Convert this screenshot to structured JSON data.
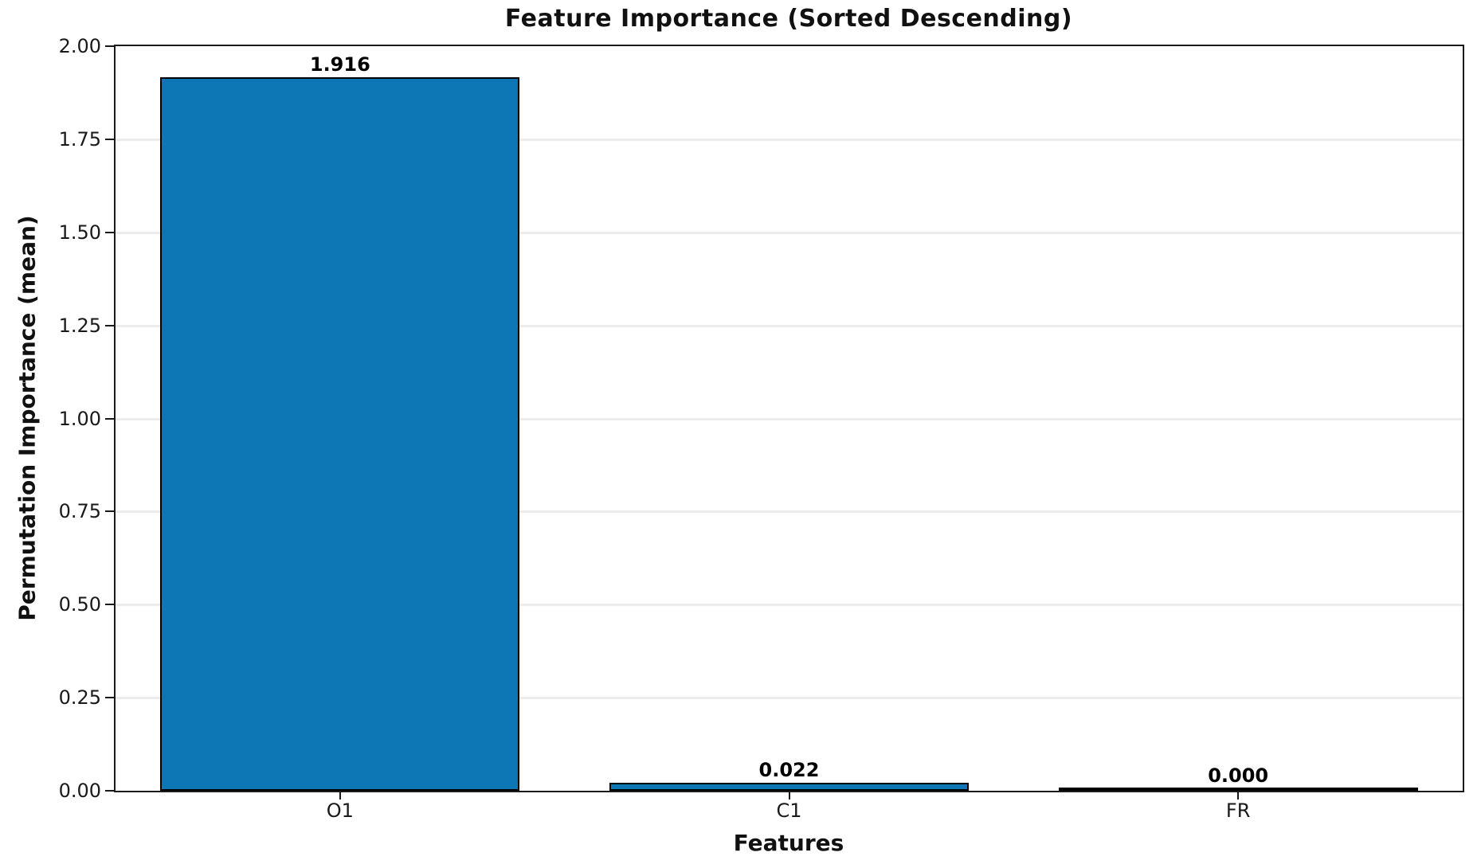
{
  "chart_data": {
    "type": "bar",
    "title": "Feature Importance (Sorted Descending)",
    "xlabel": "Features",
    "ylabel": "Permutation Importance (mean)",
    "categories": [
      "O1",
      "C1",
      "FR"
    ],
    "values": [
      1.916,
      0.022,
      0.0
    ],
    "value_labels": [
      "1.916",
      "0.022",
      "0.000"
    ],
    "ylim": [
      0.0,
      2.0
    ],
    "yticks": [
      "0.00",
      "0.25",
      "0.50",
      "0.75",
      "1.00",
      "1.25",
      "1.50",
      "1.75",
      "2.00"
    ],
    "grid": true,
    "legend": "none",
    "bar_width_fraction": 0.8,
    "colors": {
      "bar_fill": "#0d76b4",
      "bar_edge": "#000000",
      "grid": "#ececec",
      "spine": "#1a1a1a",
      "text": "#111111",
      "background": "#ffffff"
    }
  }
}
